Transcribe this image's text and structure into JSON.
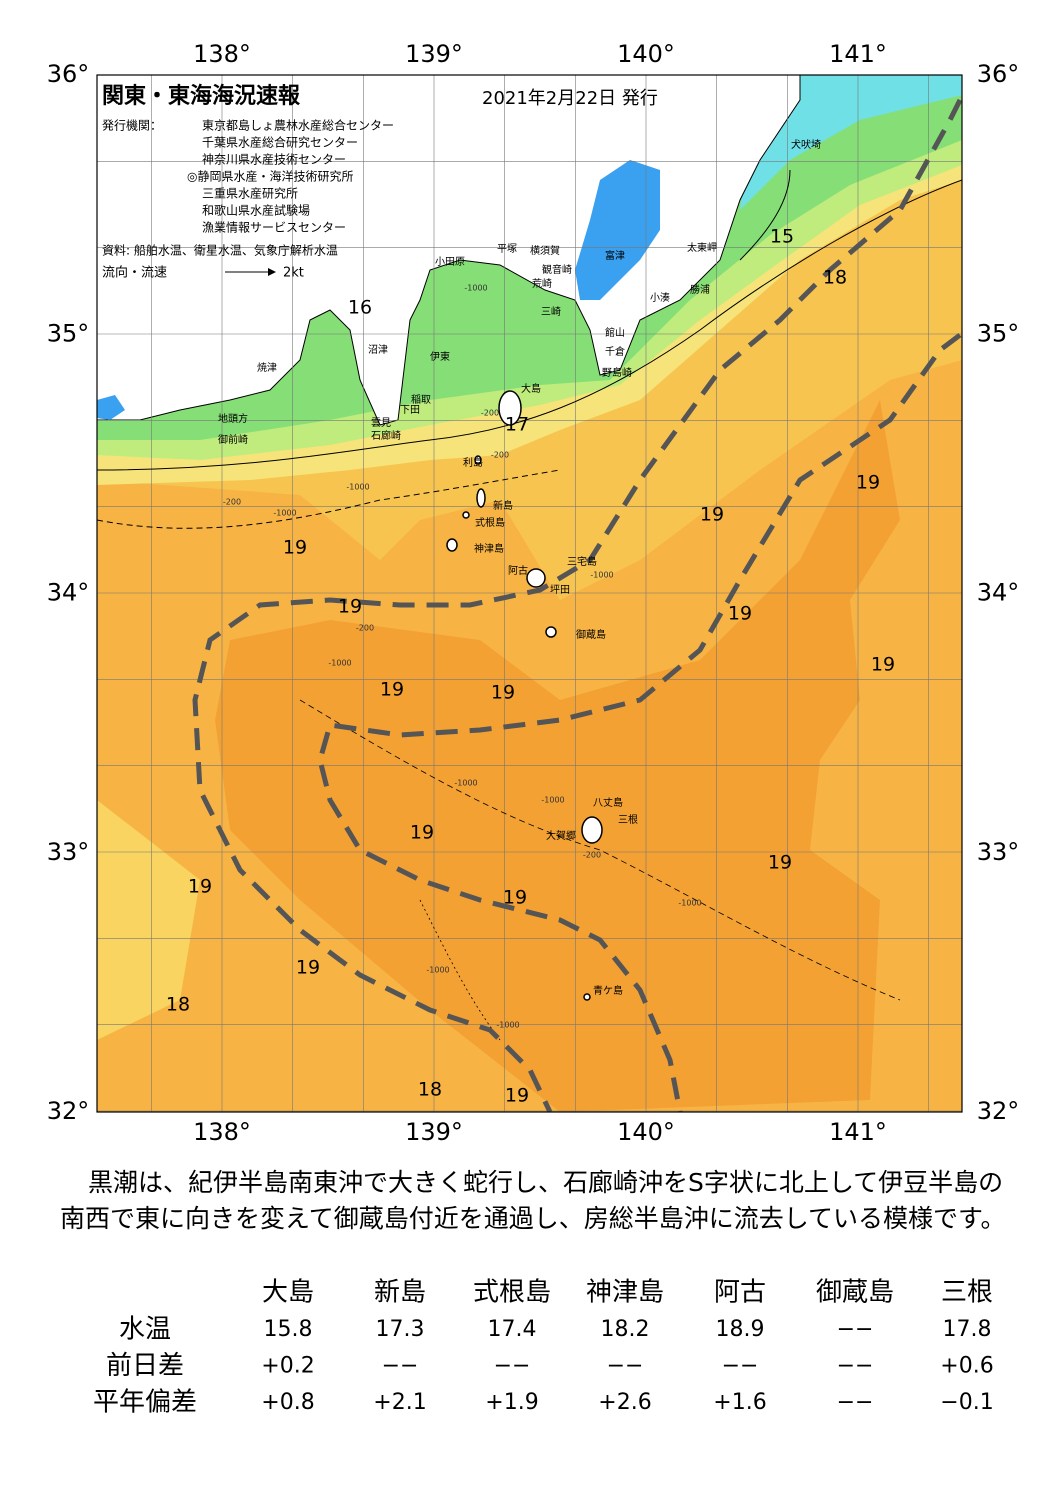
{
  "map": {
    "title": "関東・東海海況速報",
    "date": "2021年2月22日 発行",
    "publisher_label": "発行機関：",
    "publishers": [
      "東京都島しょ農林水産総合センター",
      "千葉県水産総合研究センター",
      "神奈川県水産技術センター",
      "◎静岡県水産・海洋技術研究所",
      "三重県水産研究所",
      "和歌山県水産試験場",
      "漁業情報サービスセンター"
    ],
    "sources": "資料: 船舶水温、衛星水温、気象庁解析水温",
    "legend": {
      "label": "流向・流速",
      "speed": "2kt"
    },
    "lon_labels": [
      "138°",
      "139°",
      "140°",
      "141°"
    ],
    "lat_labels": [
      "36°",
      "35°",
      "34°",
      "33°",
      "32°"
    ],
    "place_names": [
      "犬吠埼",
      "太東岬",
      "勝浦",
      "小湊",
      "富津",
      "横須賀",
      "観音崎",
      "荒崎",
      "三崎",
      "館山",
      "千倉",
      "野島崎",
      "平塚",
      "小田原",
      "沼津",
      "伊東",
      "焼津",
      "稲取",
      "下田",
      "大島",
      "雲見",
      "石廊崎",
      "地頭方",
      "御前崎",
      "利島",
      "新島",
      "式根島",
      "神津島",
      "三宅島",
      "阿古",
      "坪田",
      "御蔵島",
      "八丈島",
      "三根",
      "大賀郷",
      "青ケ島"
    ],
    "isotherm_labels": [
      "15",
      "18",
      "16",
      "17",
      "19",
      "19",
      "19",
      "19",
      "19",
      "19",
      "19",
      "19",
      "19",
      "19",
      "19",
      "19",
      "19",
      "18",
      "18",
      "19"
    ],
    "depth_labels": [
      "-200",
      "-1000",
      "-200",
      "-1000",
      "-200",
      "-1000",
      "-200",
      "-1000",
      "-1000",
      "-200",
      "-1000",
      "-1000",
      "-1000",
      "-1000",
      "-1000"
    ]
  },
  "description": "黒潮は、紀伊半島南東沖で大きく蛇行し、石廊崎沖をS字状に北上して伊豆半島の南西で東に向きを変えて御蔵島付近を通過し、房総半島沖に流去している模様です。",
  "table": {
    "columns": [
      "大島",
      "新島",
      "式根島",
      "神津島",
      "阿古",
      "御蔵島",
      "三根"
    ],
    "rows": [
      {
        "label": "水温",
        "cells": [
          "15.8",
          "17.3",
          "17.4",
          "18.2",
          "18.9",
          "−−",
          "17.8"
        ]
      },
      {
        "label": "前日差",
        "cells": [
          "+0.2",
          "−−",
          "−−",
          "−−",
          "−−",
          "−−",
          "+0.6"
        ]
      },
      {
        "label": "平年偏差",
        "cells": [
          "+0.8",
          "+2.1",
          "+1.9",
          "+2.6",
          "+1.6",
          "−−",
          "−0.1"
        ]
      }
    ]
  }
}
